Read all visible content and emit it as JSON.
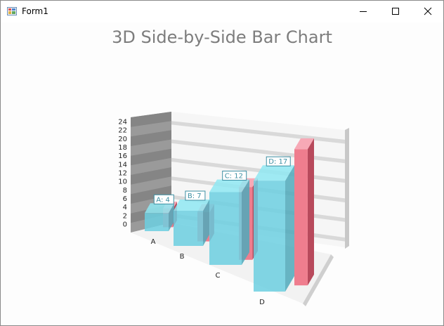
{
  "window": {
    "title": "Form1"
  },
  "chart_data": {
    "type": "bar",
    "title": "3D Side-by-Side Bar Chart",
    "categories": [
      "A",
      "B",
      "C",
      "D"
    ],
    "series": [
      {
        "values": [
          4,
          7,
          12,
          17
        ],
        "color": "#6ccfe0",
        "data_labels": [
          "A: 4",
          "B: 7",
          "C: 12",
          "D: 17"
        ]
      },
      {
        "values": [
          6,
          7,
          13,
          22
        ],
        "color": "#ef7d8e"
      }
    ],
    "y_ticks": [
      0,
      2,
      4,
      6,
      8,
      10,
      12,
      14,
      16,
      18,
      20,
      22,
      24
    ],
    "ylim": [
      0,
      24
    ],
    "grid": true
  }
}
